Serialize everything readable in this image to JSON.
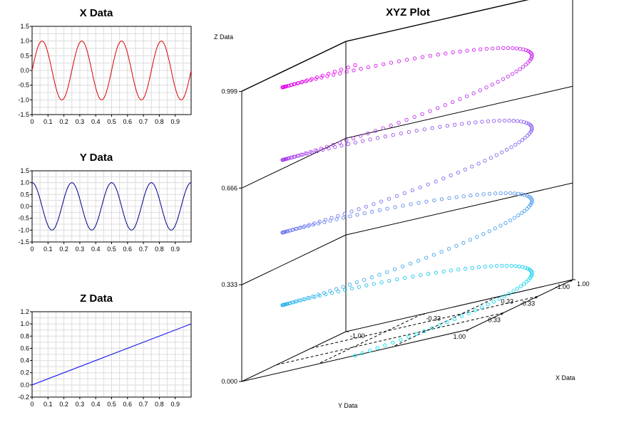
{
  "chart_data": [
    {
      "type": "line",
      "title": "X Data",
      "xlabel": "",
      "ylabel": "",
      "xlim": [
        0,
        1
      ],
      "ylim": [
        -1.5,
        1.5
      ],
      "grid": true,
      "x_ticks": [
        "0",
        "0.1",
        "0.2",
        "0.3",
        "0.4",
        "0.5",
        "0.6",
        "0.7",
        "0.8",
        "0.9"
      ],
      "y_ticks": [
        "1.5",
        "1.0",
        "0.5",
        "0.0",
        "-0.5",
        "-1.0",
        "-1.5"
      ],
      "series": [
        {
          "function": "sin(2*pi*4*t)",
          "color": "#dd0000",
          "x": [
            0,
            0.0625,
            0.125,
            0.1875,
            0.25,
            0.3125,
            0.375,
            0.4375,
            0.5,
            0.5625,
            0.625,
            0.6875,
            0.75,
            0.8125,
            0.875,
            0.9375,
            1.0
          ],
          "y": [
            0,
            1,
            0,
            -1,
            0,
            1,
            0,
            -1,
            0,
            1,
            0,
            -1,
            0,
            1,
            0,
            -1,
            0
          ]
        }
      ]
    },
    {
      "type": "line",
      "title": "Y Data",
      "xlabel": "",
      "ylabel": "",
      "xlim": [
        0,
        1
      ],
      "ylim": [
        -1.5,
        1.5
      ],
      "grid": true,
      "x_ticks": [
        "0",
        "0.1",
        "0.2",
        "0.3",
        "0.4",
        "0.5",
        "0.6",
        "0.7",
        "0.8",
        "0.9"
      ],
      "y_ticks": [
        "1.5",
        "1.0",
        "0.5",
        "0.0",
        "-0.5",
        "-1.0",
        "-1.5"
      ],
      "series": [
        {
          "function": "cos(2*pi*4*t)",
          "color": "#00008b",
          "x": [
            0,
            0.0625,
            0.125,
            0.1875,
            0.25,
            0.3125,
            0.375,
            0.4375,
            0.5,
            0.5625,
            0.625,
            0.6875,
            0.75,
            0.8125,
            0.875,
            0.9375,
            1.0
          ],
          "y": [
            1,
            0,
            -1,
            0,
            1,
            0,
            -1,
            0,
            1,
            0,
            -1,
            0,
            1,
            0,
            -1,
            0,
            1
          ]
        }
      ]
    },
    {
      "type": "line",
      "title": "Z Data",
      "xlabel": "",
      "ylabel": "",
      "xlim": [
        0,
        1
      ],
      "ylim": [
        -0.2,
        1.2
      ],
      "grid": true,
      "x_ticks": [
        "0",
        "0.1",
        "0.2",
        "0.3",
        "0.4",
        "0.5",
        "0.6",
        "0.7",
        "0.8",
        "0.9"
      ],
      "y_ticks": [
        "1.2",
        "1.0",
        "0.8",
        "0.6",
        "0.4",
        "0.2",
        "0.0",
        "-0.2"
      ],
      "series": [
        {
          "function": "t",
          "color": "#0000ee",
          "x": [
            0,
            1
          ],
          "y": [
            0,
            1
          ]
        }
      ]
    },
    {
      "type": "scatter",
      "subtype": "3d-helix",
      "title": "XYZ Plot",
      "xlabel": "X Data",
      "ylabel": "Y Data",
      "zlabel": "Z Data",
      "xlim": [
        -1,
        1
      ],
      "ylim": [
        -1,
        1
      ],
      "zlim": [
        0,
        1
      ],
      "x_ticks": [
        "1.00",
        "0.33",
        "-0.33",
        "-1.00"
      ],
      "y_ticks": [
        "1.00",
        "0.33",
        "-0.33",
        "-1.00"
      ],
      "z_ticks": [
        "0.999",
        "0.666",
        "0.333",
        "0.000"
      ],
      "points": 400,
      "turns": 4,
      "x": "sin(2*pi*4*t)",
      "y": "cos(2*pi*4*t)",
      "z": "t",
      "marker": "open-circle",
      "colormap": [
        "#00e5ee",
        "#ee00ee"
      ]
    }
  ]
}
